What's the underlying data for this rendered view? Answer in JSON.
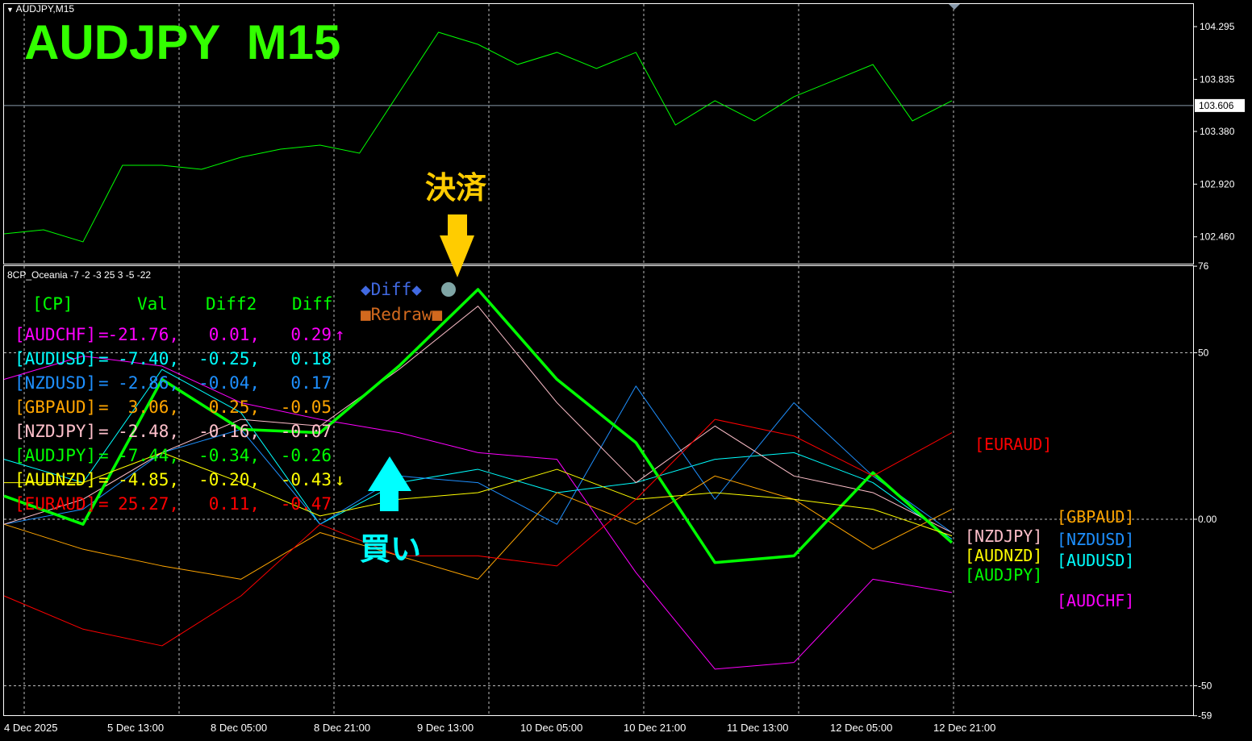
{
  "window": {
    "symbol_caption": "AUDJPY,M15",
    "big_title": "AUDJPY  M15"
  },
  "indicator": {
    "caption": "8CP_Oceania -7 -2 -3 25 3 -5 -22",
    "diff_button": "◆Diff◆",
    "redraw_button": "■Redraw■"
  },
  "annotations": {
    "close_label": "決済",
    "buy_label": "買い"
  },
  "table": {
    "headers": [
      "[CP]",
      "Val",
      "Diff2",
      "Diff"
    ],
    "rows": [
      {
        "pair": "[AUDCHF]",
        "eq": "=",
        "val": "-21.76,",
        "diff2": "0.01,",
        "diff": "0.29",
        "arrow": "↑",
        "color": "#ff00ff"
      },
      {
        "pair": "[AUDUSD]",
        "eq": "=",
        "val": "-7.40,",
        "diff2": "-0.25,",
        "diff": "0.18",
        "arrow": "",
        "color": "#00ffff"
      },
      {
        "pair": "[NZDUSD]",
        "eq": "=",
        "val": "-2.86,",
        "diff2": "-0.04,",
        "diff": "0.17",
        "arrow": "",
        "color": "#1e90ff"
      },
      {
        "pair": "[GBPAUD]",
        "eq": "=",
        "val": "3.06,",
        "diff2": "0.25,",
        "diff": "-0.05",
        "arrow": "",
        "color": "#ffa500"
      },
      {
        "pair": "[NZDJPY]",
        "eq": "=",
        "val": "-2.48,",
        "diff2": "-0.16,",
        "diff": "-0.07",
        "arrow": "",
        "color": "#ffc0cb"
      },
      {
        "pair": "[AUDJPY]",
        "eq": "=",
        "val": "-7.44,",
        "diff2": "-0.34,",
        "diff": "-0.26",
        "arrow": "",
        "color": "#00ff00"
      },
      {
        "pair": "[AUDNZD]",
        "eq": "=",
        "val": "-4.85,",
        "diff2": "-0.20,",
        "diff": "-0.43",
        "arrow": "↓",
        "color": "#ffff00"
      },
      {
        "pair": "[EURAUD]",
        "eq": "=",
        "val": "25.27,",
        "diff2": "0.11,",
        "diff": "-0.47",
        "arrow": "",
        "color": "#ff0000"
      }
    ]
  },
  "chart_data": [
    {
      "type": "line",
      "title": "AUDJPY  M15",
      "y_ticks": [
        "104.295",
        "103.835",
        "103.380",
        "102.920",
        "102.460"
      ],
      "current_price": "103.606",
      "ylim": [
        102.26,
        104.54
      ],
      "x_ticks": [
        "4 Dec 2025",
        "5 Dec 13:00",
        "8 Dec 05:00",
        "8 Dec 21:00",
        "9 Dec 13:00",
        "10 Dec 05:00",
        "10 Dec 21:00",
        "11 Dec 13:00",
        "12 Dec 05:00",
        "12 Dec 21:00"
      ],
      "grid": true,
      "color": "#00ff00",
      "values": [
        102.486,
        102.521,
        102.416,
        103.084,
        103.084,
        103.049,
        103.155,
        103.225,
        103.26,
        103.19,
        103.718,
        104.246,
        104.14,
        103.964,
        104.07,
        103.929,
        104.07,
        103.436,
        103.648,
        103.472,
        103.683,
        103.823,
        103.964,
        103.472,
        103.648
      ]
    },
    {
      "type": "line",
      "y_ticks": [
        "76",
        "50",
        "0.00",
        "-50",
        "-59"
      ],
      "ylim": [
        -59,
        76
      ],
      "grid": true,
      "series": [
        {
          "name": "[AUDCHF]",
          "color": "#ff00ff",
          "values": [
            42,
            49,
            46,
            35,
            30,
            26,
            20,
            18,
            -16,
            -45,
            -43,
            -18,
            -22
          ]
        },
        {
          "name": "[AUDUSD]",
          "color": "#00ffff",
          "values": [
            18,
            11,
            45,
            32,
            -1.5,
            11,
            15,
            8,
            11,
            18,
            20,
            11,
            -6
          ]
        },
        {
          "name": "[NZDUSD]",
          "color": "#1e90ff",
          "values": [
            -1.5,
            3,
            20,
            27,
            -1.5,
            13,
            11,
            -1.5,
            40,
            6,
            35,
            13,
            -4
          ]
        },
        {
          "name": "[GBPAUD]",
          "color": "#ffa500",
          "values": [
            -1.5,
            -9,
            -14,
            -18,
            -4,
            -11,
            -18,
            8,
            -1.5,
            13,
            6,
            -9,
            3
          ]
        },
        {
          "name": "[NZDJPY]",
          "color": "#ffc0cb",
          "values": [
            -1.5,
            6,
            20,
            30,
            28,
            45,
            64,
            35,
            11,
            28,
            13,
            8,
            -4
          ]
        },
        {
          "name": "[AUDJPY]",
          "color": "#00ff00",
          "values": [
            7,
            -1.5,
            42,
            27,
            26,
            46,
            69,
            42,
            23,
            -13,
            -11,
            14,
            -7
          ]
        },
        {
          "name": "[AUDNZD]",
          "color": "#ffff00",
          "values": [
            11,
            11,
            20,
            11,
            1,
            6,
            8,
            15,
            6,
            8,
            6,
            3,
            -5
          ]
        },
        {
          "name": "[EURAUD]",
          "color": "#ff0000",
          "values": [
            -23,
            -33,
            -38,
            -23,
            -1.5,
            -11,
            -11,
            -14,
            6,
            30,
            25,
            13,
            26
          ]
        }
      ]
    }
  ]
}
